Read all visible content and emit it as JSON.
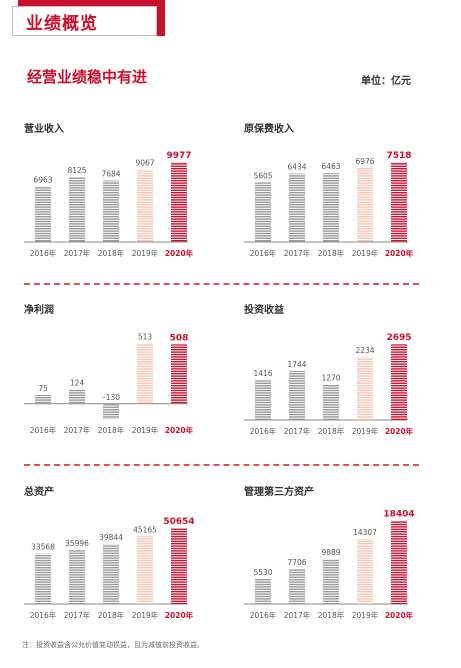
{
  "header": {
    "title": "业绩概览"
  },
  "section": {
    "title": "经营业绩稳中有进",
    "unit": "单位：亿元"
  },
  "footnote": "注：投资收益含公允价值变动损益，且为减值前投资收益。",
  "colors": {
    "red": "#c8102e",
    "highlight": "#f5c8b4",
    "gray": "#9a9a9a",
    "axis": "#888888"
  },
  "chart_data": [
    {
      "type": "bar",
      "title": "营业收入",
      "categories": [
        "2016年",
        "2017年",
        "2018年",
        "2019年",
        "2020年"
      ],
      "values": [
        6963,
        8125,
        7684,
        9067,
        9977
      ],
      "labels": [
        "6963",
        "8125",
        "7684",
        "9067",
        "9977"
      ],
      "ylim": [
        0,
        12500
      ]
    },
    {
      "type": "bar",
      "title": "原保费收入",
      "categories": [
        "2016年",
        "2017年",
        "2018年",
        "2019年",
        "2020年"
      ],
      "values": [
        5605,
        6434,
        6463,
        6976,
        7518
      ],
      "labels": [
        "5605",
        "6434",
        "6463",
        "6976",
        "7518"
      ],
      "ylim": [
        0,
        9400
      ]
    },
    {
      "type": "bar",
      "title": "净利润",
      "categories": [
        "2016年",
        "2017年",
        "2018年",
        "2019年",
        "2020年"
      ],
      "values": [
        75,
        124,
        -130,
        513,
        508
      ],
      "labels": [
        "75",
        "124",
        "–130",
        "513",
        "508"
      ],
      "ylim": [
        -130,
        690
      ]
    },
    {
      "type": "bar",
      "title": "投资收益",
      "categories": [
        "2016年",
        "2017年",
        "2018年",
        "2019年",
        "2020年"
      ],
      "values": [
        1416,
        1744,
        1270,
        2234,
        2695
      ],
      "labels": [
        "1416",
        "1744",
        "1270",
        "2234",
        "2695"
      ],
      "ylim": [
        0,
        3450
      ]
    },
    {
      "type": "bar",
      "title": "总资产",
      "categories": [
        "2016年",
        "2017年",
        "2018年",
        "2019年",
        "2020年"
      ],
      "values": [
        33568,
        35996,
        39844,
        45165,
        50654
      ],
      "labels": [
        "33568",
        "35996",
        "39844",
        "45165",
        "50654"
      ],
      "ylim": [
        0,
        66000
      ]
    },
    {
      "type": "bar",
      "title": "管理第三方资产",
      "categories": [
        "2016年",
        "2017年",
        "2018年",
        "2019年",
        "2020年"
      ],
      "values": [
        5530,
        7706,
        9889,
        14307,
        18404
      ],
      "labels": [
        "5530",
        "7706",
        "9889",
        "14307",
        "18404"
      ],
      "ylim": [
        0,
        21800
      ]
    }
  ]
}
